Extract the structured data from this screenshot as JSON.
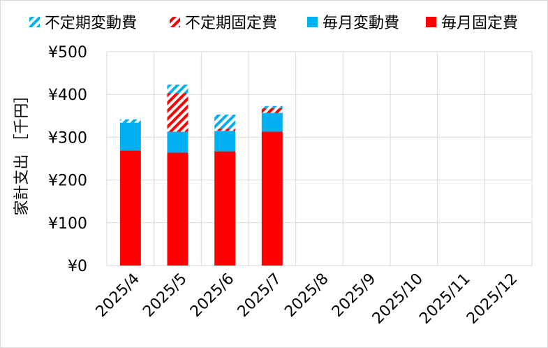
{
  "chart_data": {
    "type": "bar",
    "stacked": true,
    "ylabel": "家計支出 ［千円］",
    "ylim": [
      0,
      500
    ],
    "ytick_values": [
      0,
      100,
      200,
      300,
      400,
      500
    ],
    "ytick_labels": [
      "¥0",
      "¥100",
      "¥200",
      "¥300",
      "¥400",
      "¥500"
    ],
    "categories": [
      "2025/4",
      "2025/5",
      "2025/6",
      "2025/7",
      "2025/8",
      "2025/9",
      "2025/10",
      "2025/11",
      "2025/12"
    ],
    "legend_position": "top",
    "series": [
      {
        "name": "毎月固定費",
        "color": "#ff0000",
        "pattern": "solid",
        "values": [
          269,
          264,
          267,
          313,
          null,
          null,
          null,
          null,
          null
        ]
      },
      {
        "name": "毎月変動費",
        "color": "#00b0f0",
        "pattern": "solid",
        "values": [
          65,
          49,
          48,
          44,
          null,
          null,
          null,
          null,
          null
        ]
      },
      {
        "name": "不定期固定費",
        "color": "#ff0000",
        "pattern": "hatched",
        "values": [
          0,
          90,
          5,
          11,
          null,
          null,
          null,
          null,
          null
        ]
      },
      {
        "name": "不定期変動費",
        "color": "#00b0f0",
        "pattern": "hatched",
        "values": [
          8,
          20,
          33,
          5,
          null,
          null,
          null,
          null,
          null
        ]
      }
    ],
    "legend_order": [
      "不定期変動費",
      "不定期固定費",
      "毎月変動費",
      "毎月固定費"
    ]
  }
}
